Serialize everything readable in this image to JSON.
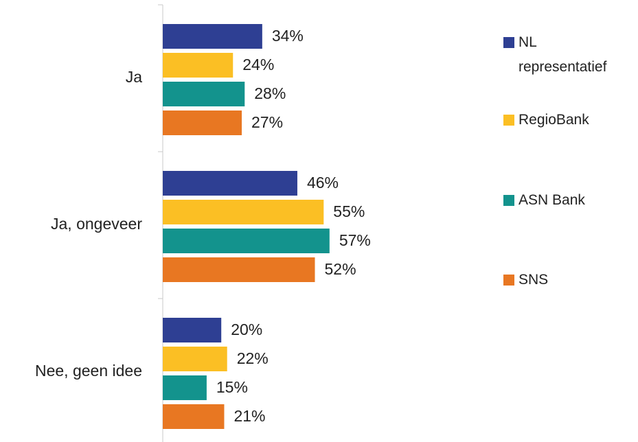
{
  "chart_data": {
    "type": "bar",
    "orientation": "horizontal",
    "categories": [
      "Ja",
      "Ja, ongeveer",
      "Nee, geen idee"
    ],
    "series": [
      {
        "name": "NL representatief",
        "color": "#2e3f93",
        "values": [
          34,
          46,
          20
        ],
        "value_labels": [
          "34%",
          "46%",
          "20%"
        ]
      },
      {
        "name": "RegioBank",
        "color": "#fbbf24",
        "values": [
          24,
          55,
          22
        ],
        "value_labels": [
          "24%",
          "55%",
          "22%"
        ]
      },
      {
        "name": "ASN Bank",
        "color": "#13938d",
        "values": [
          28,
          57,
          15
        ],
        "value_labels": [
          "28%",
          "57%",
          "15%"
        ]
      },
      {
        "name": "SNS",
        "color": "#e87722",
        "values": [
          27,
          52,
          21
        ],
        "value_labels": [
          "27%",
          "52%",
          "21%"
        ]
      }
    ],
    "legend": "right"
  }
}
